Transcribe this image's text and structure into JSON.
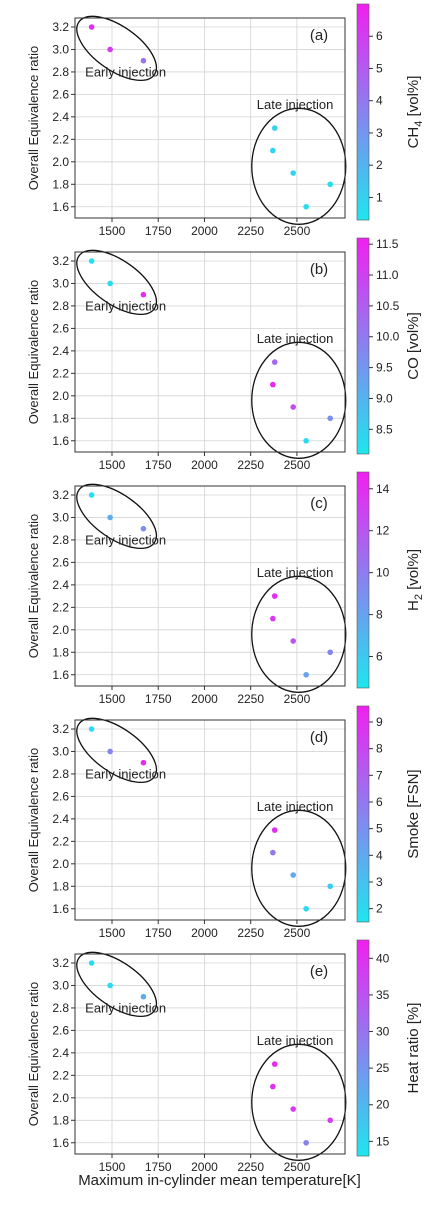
{
  "figure": {
    "xlabel": "Maximum in-cylinder mean temperature[K]",
    "ylabel": "Overall Equivalence ratio"
  },
  "colormap": {
    "low": "#1ee6ee",
    "high": "#f21ff0"
  },
  "chart_data": [
    {
      "type": "scatter",
      "panel_label": "(a)",
      "colorbar_label": "CH4 [vol%]",
      "xlim": [
        1300,
        2760
      ],
      "ylim": [
        1.5,
        3.28
      ],
      "xticks": [
        "1500",
        "1750",
        "2000",
        "2250",
        "2500"
      ],
      "yticks": [
        "1.6",
        "1.8",
        "2.0",
        "2.2",
        "2.4",
        "2.6",
        "2.8",
        "3.0",
        "3.2"
      ],
      "clim": [
        0.3,
        7.0
      ],
      "cticks": [
        "1",
        "2",
        "3",
        "4",
        "5",
        "6"
      ],
      "grid": true,
      "annotations": [
        "Early injection",
        "Late injection"
      ],
      "points": [
        {
          "x": 1390,
          "y": 3.2,
          "c": 6.5
        },
        {
          "x": 1490,
          "y": 3.0,
          "c": 6.0
        },
        {
          "x": 1670,
          "y": 2.9,
          "c": 4.2
        },
        {
          "x": 2380,
          "y": 2.3,
          "c": 1.0
        },
        {
          "x": 2370,
          "y": 2.1,
          "c": 0.8
        },
        {
          "x": 2480,
          "y": 1.9,
          "c": 0.9
        },
        {
          "x": 2550,
          "y": 1.6,
          "c": 0.6
        },
        {
          "x": 2680,
          "y": 1.8,
          "c": 0.6
        }
      ]
    },
    {
      "type": "scatter",
      "panel_label": "(b)",
      "colorbar_label": "CO [vol%]",
      "xlim": [
        1300,
        2760
      ],
      "ylim": [
        1.5,
        3.28
      ],
      "xticks": [
        "1500",
        "1750",
        "2000",
        "2250",
        "2500"
      ],
      "yticks": [
        "1.6",
        "1.8",
        "2.0",
        "2.2",
        "2.4",
        "2.6",
        "2.8",
        "3.0",
        "3.2"
      ],
      "clim": [
        8.1,
        11.6
      ],
      "cticks": [
        "8.5",
        "9.0",
        "9.5",
        "10.0",
        "10.5",
        "11.0",
        "11.5"
      ],
      "grid": true,
      "annotations": [
        "Early injection",
        "Late injection"
      ],
      "points": [
        {
          "x": 1390,
          "y": 3.2,
          "c": 8.2
        },
        {
          "x": 1490,
          "y": 3.0,
          "c": 8.3
        },
        {
          "x": 1670,
          "y": 2.9,
          "c": 11.4
        },
        {
          "x": 2380,
          "y": 2.3,
          "c": 10.3
        },
        {
          "x": 2370,
          "y": 2.1,
          "c": 11.5
        },
        {
          "x": 2480,
          "y": 1.9,
          "c": 10.8
        },
        {
          "x": 2550,
          "y": 1.6,
          "c": 8.3
        },
        {
          "x": 2680,
          "y": 1.8,
          "c": 9.6
        }
      ]
    },
    {
      "type": "scatter",
      "panel_label": "(c)",
      "colorbar_label": "H2 [vol%]",
      "xlim": [
        1300,
        2760
      ],
      "ylim": [
        1.5,
        3.28
      ],
      "xticks": [
        "1500",
        "1750",
        "2000",
        "2250",
        "2500"
      ],
      "yticks": [
        "1.6",
        "1.8",
        "2.0",
        "2.2",
        "2.4",
        "2.6",
        "2.8",
        "3.0",
        "3.2"
      ],
      "clim": [
        4.5,
        14.8
      ],
      "cticks": [
        "6",
        "8",
        "10",
        "12",
        "14"
      ],
      "grid": true,
      "annotations": [
        "Early injection",
        "Late injection"
      ],
      "points": [
        {
          "x": 1390,
          "y": 3.2,
          "c": 4.8
        },
        {
          "x": 1490,
          "y": 3.0,
          "c": 7.5
        },
        {
          "x": 1670,
          "y": 2.9,
          "c": 9.0
        },
        {
          "x": 2380,
          "y": 2.3,
          "c": 14.0
        },
        {
          "x": 2370,
          "y": 2.1,
          "c": 13.5
        },
        {
          "x": 2480,
          "y": 1.9,
          "c": 12.0
        },
        {
          "x": 2550,
          "y": 1.6,
          "c": 8.0
        },
        {
          "x": 2680,
          "y": 1.8,
          "c": 9.5
        }
      ]
    },
    {
      "type": "scatter",
      "panel_label": "(d)",
      "colorbar_label": "Smoke [FSN]",
      "xlim": [
        1300,
        2760
      ],
      "ylim": [
        1.5,
        3.28
      ],
      "xticks": [
        "1500",
        "1750",
        "2000",
        "2250",
        "2500"
      ],
      "yticks": [
        "1.6",
        "1.8",
        "2.0",
        "2.2",
        "2.4",
        "2.6",
        "2.8",
        "3.0",
        "3.2"
      ],
      "clim": [
        1.5,
        9.6
      ],
      "cticks": [
        "2",
        "3",
        "4",
        "5",
        "6",
        "7",
        "8",
        "9"
      ],
      "grid": true,
      "annotations": [
        "Early injection",
        "Late injection"
      ],
      "points": [
        {
          "x": 1390,
          "y": 3.2,
          "c": 2.0
        },
        {
          "x": 1490,
          "y": 3.0,
          "c": 5.5
        },
        {
          "x": 1670,
          "y": 2.9,
          "c": 9.2
        },
        {
          "x": 2380,
          "y": 2.3,
          "c": 9.0
        },
        {
          "x": 2370,
          "y": 2.1,
          "c": 6.0
        },
        {
          "x": 2480,
          "y": 1.9,
          "c": 4.2
        },
        {
          "x": 2550,
          "y": 1.6,
          "c": 2.0
        },
        {
          "x": 2680,
          "y": 1.8,
          "c": 2.5
        }
      ]
    },
    {
      "type": "scatter",
      "panel_label": "(e)",
      "colorbar_label": "Heat ratio [%]",
      "xlim": [
        1300,
        2760
      ],
      "ylim": [
        1.5,
        3.28
      ],
      "xticks": [
        "1500",
        "1750",
        "2000",
        "2250",
        "2500"
      ],
      "yticks": [
        "1.6",
        "1.8",
        "2.0",
        "2.2",
        "2.4",
        "2.6",
        "2.8",
        "3.0",
        "3.2"
      ],
      "clim": [
        13.0,
        42.5
      ],
      "cticks": [
        "15",
        "20",
        "25",
        "30",
        "35",
        "40"
      ],
      "grid": true,
      "annotations": [
        "Early injection",
        "Late injection"
      ],
      "points": [
        {
          "x": 1390,
          "y": 3.2,
          "c": 14.0
        },
        {
          "x": 1490,
          "y": 3.0,
          "c": 15.0
        },
        {
          "x": 1670,
          "y": 2.9,
          "c": 22.0
        },
        {
          "x": 2380,
          "y": 2.3,
          "c": 41.0
        },
        {
          "x": 2370,
          "y": 2.1,
          "c": 40.0
        },
        {
          "x": 2480,
          "y": 1.9,
          "c": 39.0
        },
        {
          "x": 2550,
          "y": 1.6,
          "c": 28.0
        },
        {
          "x": 2680,
          "y": 1.8,
          "c": 38.0
        }
      ]
    }
  ]
}
